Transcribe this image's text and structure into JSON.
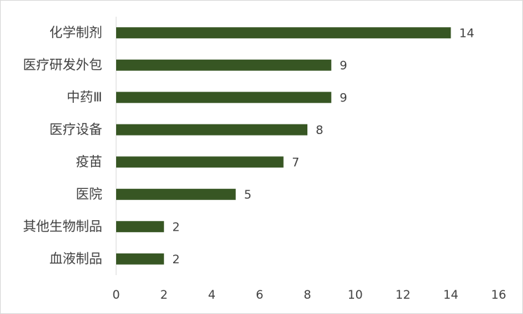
{
  "chart_data": {
    "type": "bar",
    "orientation": "horizontal",
    "categories": [
      "化学制剂",
      "医疗研发外包",
      "中药Ⅲ",
      "医疗设备",
      "疫苗",
      "医院",
      "其他生物制品",
      "血液制品"
    ],
    "values": [
      14,
      9,
      9,
      8,
      7,
      5,
      2,
      2
    ],
    "color": "#375623",
    "xlim": [
      0,
      16
    ],
    "xticks": [
      0,
      2,
      4,
      6,
      8,
      10,
      12,
      14,
      16
    ],
    "data_labels": true,
    "grid": false
  }
}
